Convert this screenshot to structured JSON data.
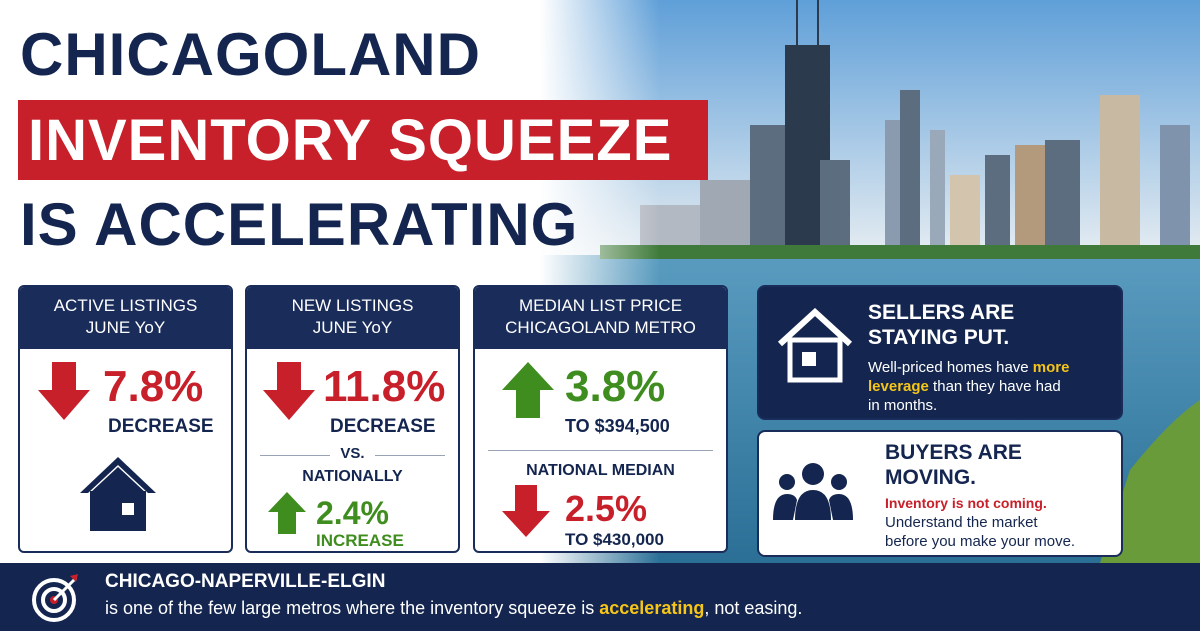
{
  "header": {
    "line1": "CHICAGOLAND",
    "line2": "INVENTORY SQUEEZE",
    "line3": "IS ACCELERATING"
  },
  "cards": [
    {
      "title": [
        "ACTIVE LISTINGS",
        "JUNE YoY"
      ],
      "value": "7.8%",
      "label": "DECREASE"
    },
    {
      "title": [
        "NEW LISTINGS",
        "JUNE YoY"
      ],
      "value": "11.8%",
      "label": "DECREASE",
      "vs": "VS.",
      "compare_title": "NATIONALLY",
      "compare_value": "2.4%",
      "compare_label": "INCREASE"
    },
    {
      "title": [
        "MEDIAN LIST PRICE",
        "CHICAGOLAND METRO"
      ],
      "value": "3.8%",
      "label": "TO $394,500",
      "compare_title": "NATIONAL MEDIAN",
      "compare_value": "2.5%",
      "compare_label": "TO $430,000"
    }
  ],
  "panels": [
    {
      "title": [
        "SELLERS ARE",
        "STAYING PUT."
      ],
      "text": [
        [
          "Well-priced homes have ",
          "more"
        ],
        [
          "leverage",
          " than they have had"
        ],
        [
          "in months."
        ]
      ]
    },
    {
      "title": [
        "BUYERS ARE",
        "MOVING."
      ],
      "highlight": "Inventory is not coming.",
      "text": [
        "Understand the market",
        "before you make your move."
      ]
    }
  ],
  "footer": {
    "title": "CHICAGO-NAPERVILLE-ELGIN",
    "text": [
      "is one of the few large metros where the inventory squeeze is ",
      "accelerating",
      ", not easing."
    ]
  }
}
